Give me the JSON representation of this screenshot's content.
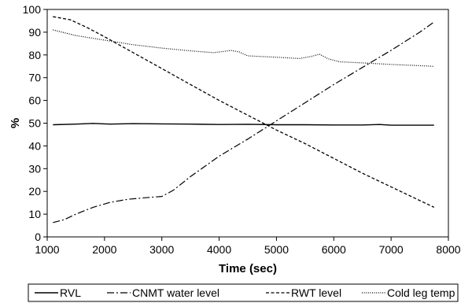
{
  "chart_data": {
    "type": "line",
    "title": "",
    "xlabel": "Time (sec)",
    "ylabel": "%",
    "xlim": [
      1000,
      8000
    ],
    "ylim": [
      0,
      100
    ],
    "x_ticks": [
      "1000",
      "2000",
      "3000",
      "4000",
      "5000",
      "6000",
      "7000",
      "8000"
    ],
    "y_ticks": [
      "0",
      "10",
      "20",
      "30",
      "40",
      "50",
      "60",
      "70",
      "80",
      "90",
      "100"
    ],
    "grid": false,
    "legend_position": "bottom",
    "series": [
      {
        "name": "RVL",
        "style": "solid",
        "color": "#000000",
        "points": [
          [
            1100,
            49.3
          ],
          [
            1500,
            49.6
          ],
          [
            1800,
            49.9
          ],
          [
            2100,
            49.6
          ],
          [
            2500,
            49.8
          ],
          [
            3000,
            49.7
          ],
          [
            3500,
            49.6
          ],
          [
            4000,
            49.4
          ],
          [
            4500,
            49.5
          ],
          [
            5000,
            49.3
          ],
          [
            5500,
            49.3
          ],
          [
            6000,
            49.2
          ],
          [
            6500,
            49.2
          ],
          [
            6800,
            49.4
          ],
          [
            7000,
            49.1
          ],
          [
            7500,
            49.1
          ],
          [
            7750,
            49.1
          ]
        ]
      },
      {
        "name": "CNMT water level",
        "style": "dashdot",
        "color": "#000000",
        "points": [
          [
            1100,
            6.3
          ],
          [
            1300,
            7.6
          ],
          [
            1500,
            10
          ],
          [
            1800,
            13
          ],
          [
            2100,
            15.2
          ],
          [
            2400,
            16.5
          ],
          [
            2700,
            17.2
          ],
          [
            3000,
            17.8
          ],
          [
            3200,
            20.5
          ],
          [
            3500,
            26.5
          ],
          [
            4000,
            35.5
          ],
          [
            4500,
            43
          ],
          [
            5000,
            51
          ],
          [
            5500,
            59
          ],
          [
            6000,
            67
          ],
          [
            6500,
            74.5
          ],
          [
            7000,
            82
          ],
          [
            7500,
            90
          ],
          [
            7750,
            94.5
          ]
        ]
      },
      {
        "name": "RWT level",
        "style": "dashed",
        "color": "#000000",
        "points": [
          [
            1100,
            96.8
          ],
          [
            1400,
            95.5
          ],
          [
            1700,
            92
          ],
          [
            2000,
            88
          ],
          [
            2500,
            81
          ],
          [
            3000,
            74
          ],
          [
            3500,
            67
          ],
          [
            4000,
            60
          ],
          [
            4500,
            53.5
          ],
          [
            5000,
            47
          ],
          [
            5500,
            41
          ],
          [
            6000,
            34.5
          ],
          [
            6500,
            28
          ],
          [
            7000,
            22
          ],
          [
            7500,
            16
          ],
          [
            7750,
            13
          ]
        ]
      },
      {
        "name": "Cold leg temp",
        "style": "dotted",
        "color": "#000000",
        "points": [
          [
            1100,
            91
          ],
          [
            1500,
            88.5
          ],
          [
            2000,
            86.5
          ],
          [
            2500,
            84.5
          ],
          [
            3000,
            83
          ],
          [
            3500,
            81.8
          ],
          [
            3900,
            81
          ],
          [
            4100,
            81.6
          ],
          [
            4200,
            82
          ],
          [
            4350,
            81.3
          ],
          [
            4500,
            79.6
          ],
          [
            5000,
            79
          ],
          [
            5400,
            78.4
          ],
          [
            5600,
            79.3
          ],
          [
            5750,
            80.3
          ],
          [
            5900,
            78.3
          ],
          [
            6100,
            77
          ],
          [
            6500,
            76.5
          ],
          [
            7000,
            75.8
          ],
          [
            7500,
            75.3
          ],
          [
            7750,
            75
          ]
        ]
      }
    ]
  }
}
